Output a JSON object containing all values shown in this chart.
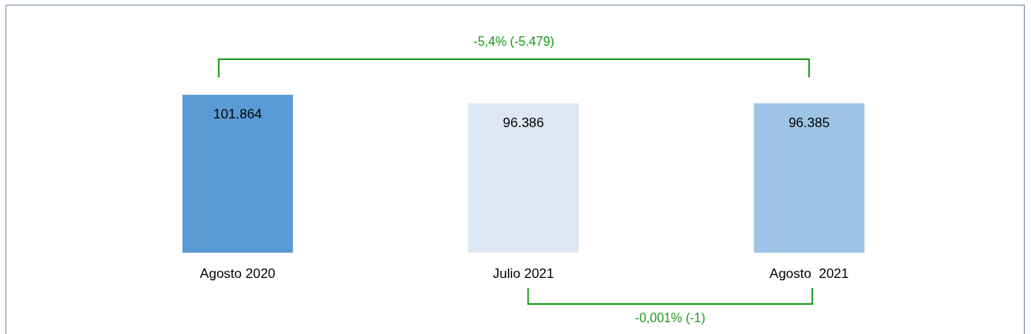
{
  "chart_data": {
    "type": "bar",
    "categories": [
      "Agosto 2020",
      "Julio 2021",
      "Agosto  2021"
    ],
    "values": [
      101864,
      96386,
      96385
    ],
    "value_labels": [
      "101.864",
      "96.386",
      "96.385"
    ],
    "colors": [
      "#5b9bd5",
      "#dde8f4",
      "#9dc3e6"
    ],
    "annotations": [
      "-5,4% (-5.479)",
      "-0,001% (-1)"
    ],
    "tick_labels": "x"
  }
}
